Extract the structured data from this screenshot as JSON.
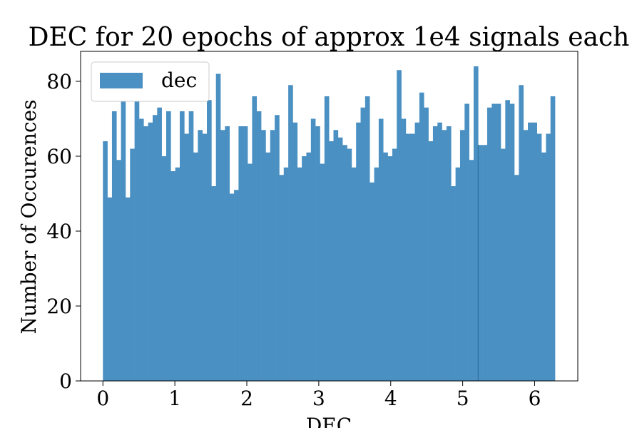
{
  "chart_data": {
    "type": "bar",
    "title": "DEC for 20 epochs of approx 1e4 signals each",
    "xlabel": "DEC",
    "ylabel": "Number of Occurences",
    "xlim": [
      -0.31,
      6.6
    ],
    "ylim": [
      0,
      88
    ],
    "bin_range": [
      0,
      6.2832
    ],
    "x_ticks": [
      0,
      1,
      2,
      3,
      4,
      5,
      6
    ],
    "y_ticks": [
      0,
      20,
      40,
      60,
      80
    ],
    "x_tick_labels": [
      "0",
      "1",
      "2",
      "3",
      "4",
      "5",
      "6"
    ],
    "y_tick_labels": [
      "0",
      "20",
      "40",
      "60",
      "80"
    ],
    "grid": false,
    "legend": {
      "position": "top-left",
      "entries": [
        {
          "label": "dec",
          "color": "#4a90c2"
        }
      ]
    },
    "series": [
      {
        "name": "dec",
        "color": "#4a90c2",
        "values": [
          64,
          49,
          72,
          59,
          77,
          49,
          62,
          81,
          70,
          68,
          69,
          71,
          73,
          60,
          72,
          56,
          57,
          72,
          66,
          72,
          61,
          67,
          66,
          75,
          52,
          82,
          67,
          68,
          50,
          51,
          68,
          68,
          58,
          76,
          72,
          67,
          61,
          67,
          71,
          55,
          57,
          79,
          69,
          57,
          60,
          61,
          70,
          68,
          58,
          76,
          64,
          67,
          65,
          63,
          62,
          57,
          69,
          73,
          76,
          53,
          57,
          70,
          61,
          60,
          62,
          83,
          70,
          66,
          66,
          69,
          77,
          73,
          64,
          68,
          69,
          67,
          68,
          52,
          57,
          67,
          74,
          59,
          84,
          63,
          63,
          73,
          74,
          74,
          62,
          75,
          74,
          55,
          79,
          67,
          69,
          69,
          66,
          61,
          66,
          76
        ]
      }
    ],
    "highlight_bin_edge": 5.215
  }
}
